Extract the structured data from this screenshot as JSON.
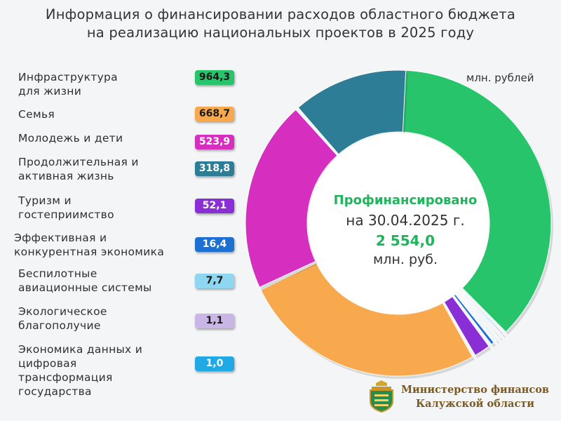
{
  "title": {
    "line1": "Информация о финансировании расходов областного бюджета",
    "line2": "на реализацию национальных проектов в 2025 году"
  },
  "unit": "млн. рублей",
  "center": {
    "line1": "Профинансировано",
    "line2": "на 30.04.2025   г.",
    "line3": "2 554,0",
    "line4": "млн. руб."
  },
  "ministry": {
    "line1": "Министерство финансов",
    "line2": "Калужской области"
  },
  "colors": {
    "green": "#27c46b",
    "orange": "#f8a94d",
    "magenta": "#d62fc0",
    "teal": "#2d7d96",
    "purple": "#8a2fd6",
    "blue": "#1d6fd1",
    "lightblue": "#8fd6f0",
    "lavender": "#c9b6e6",
    "cyan": "#21a9e6"
  },
  "chart_data": {
    "type": "pie",
    "title": "Информация о финансировании расходов областного бюджета на реализацию национальных проектов в 2025 году",
    "unit": "млн. рублей",
    "total": "2 554,0",
    "categories": [
      {
        "line1": "Инфраструктура",
        "line2": "для жизни",
        "line3": "",
        "line4": ""
      },
      {
        "line1": "Семья",
        "line2": "",
        "line3": "",
        "line4": ""
      },
      {
        "line1": "Молодежь и дети",
        "line2": "",
        "line3": "",
        "line4": ""
      },
      {
        "line1": "Продолжительная  и",
        "line2": "активная жизнь",
        "line3": "",
        "line4": ""
      },
      {
        "line1": "Туризм и",
        "line2": "гостеприимство",
        "line3": "",
        "line4": ""
      },
      {
        "line1": "Эффективная  и",
        "line2": "конкурентная экономика",
        "line3": "",
        "line4": ""
      },
      {
        "line1": "Беспилотные",
        "line2": "авиационные  системы",
        "line3": "",
        "line4": ""
      },
      {
        "line1": "Экологическое",
        "line2": "благополучие",
        "line3": "",
        "line4": ""
      },
      {
        "line1": "Экономика данных и",
        "line2": "цифровая",
        "line3": "трансформация",
        "line4": "государства"
      }
    ],
    "values": [
      964.3,
      668.7,
      523.9,
      318.8,
      52.1,
      16.4,
      7.7,
      1.1,
      1.0
    ],
    "value_labels": [
      "964,3",
      "668,7",
      "523,9",
      "318,8",
      "52,1",
      "16,4",
      "7,7",
      "1,1",
      "1,0"
    ],
    "series_colors": [
      "#27c46b",
      "#f8a94d",
      "#d62fc0",
      "#2d7d96",
      "#8a2fd6",
      "#1d6fd1",
      "#8fd6f0",
      "#c9b6e6",
      "#21a9e6"
    ],
    "badge_text_colors": [
      "#1a1a1a",
      "#1a1a1a",
      "#ffffff",
      "#ffffff",
      "#ffffff",
      "#ffffff",
      "#1a1a1a",
      "#1a1a1a",
      "#ffffff"
    ],
    "legend": "left"
  }
}
